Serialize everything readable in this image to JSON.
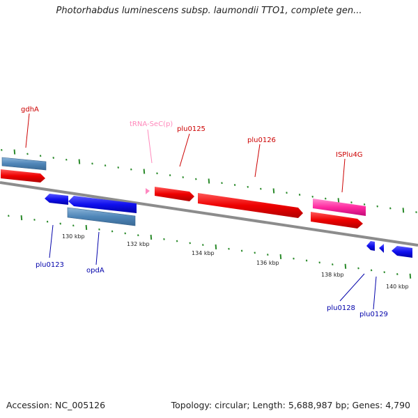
{
  "header": {
    "title": "Photorhabdus luminescens subsp. laumondii TTO1, complete gen..."
  },
  "footer": {
    "accession": "Accession: NC_005126",
    "summary": "Topology: circular; Length: 5,688,987 bp; Genes: 4,790"
  },
  "colors": {
    "backbone": "#808080",
    "forward_gene": "#ff0000",
    "reverse_gene": "#0000ee",
    "cds_bar": "#4f86b8",
    "trna": "#ff99cc",
    "mobile_element": "#ff2aa0",
    "tick": "#2a8a2a",
    "label_forward": "#cc0000",
    "label_reverse": "#0000aa",
    "label_trna": "#ff88bb"
  },
  "scale_labels": [
    "130 kbp",
    "132 kbp",
    "134 kbp",
    "136 kbp",
    "138 kbp",
    "140 kbp"
  ],
  "gene_labels": {
    "gdhA": "gdhA",
    "trna": "tRNA-SeC(p)",
    "plu0125": "plu0125",
    "plu0126": "plu0126",
    "ISPlu4G": "ISPlu4G",
    "plu0123": "plu0123",
    "opdA": "opdA",
    "plu0128": "plu0128",
    "plu0129": "plu0129"
  }
}
